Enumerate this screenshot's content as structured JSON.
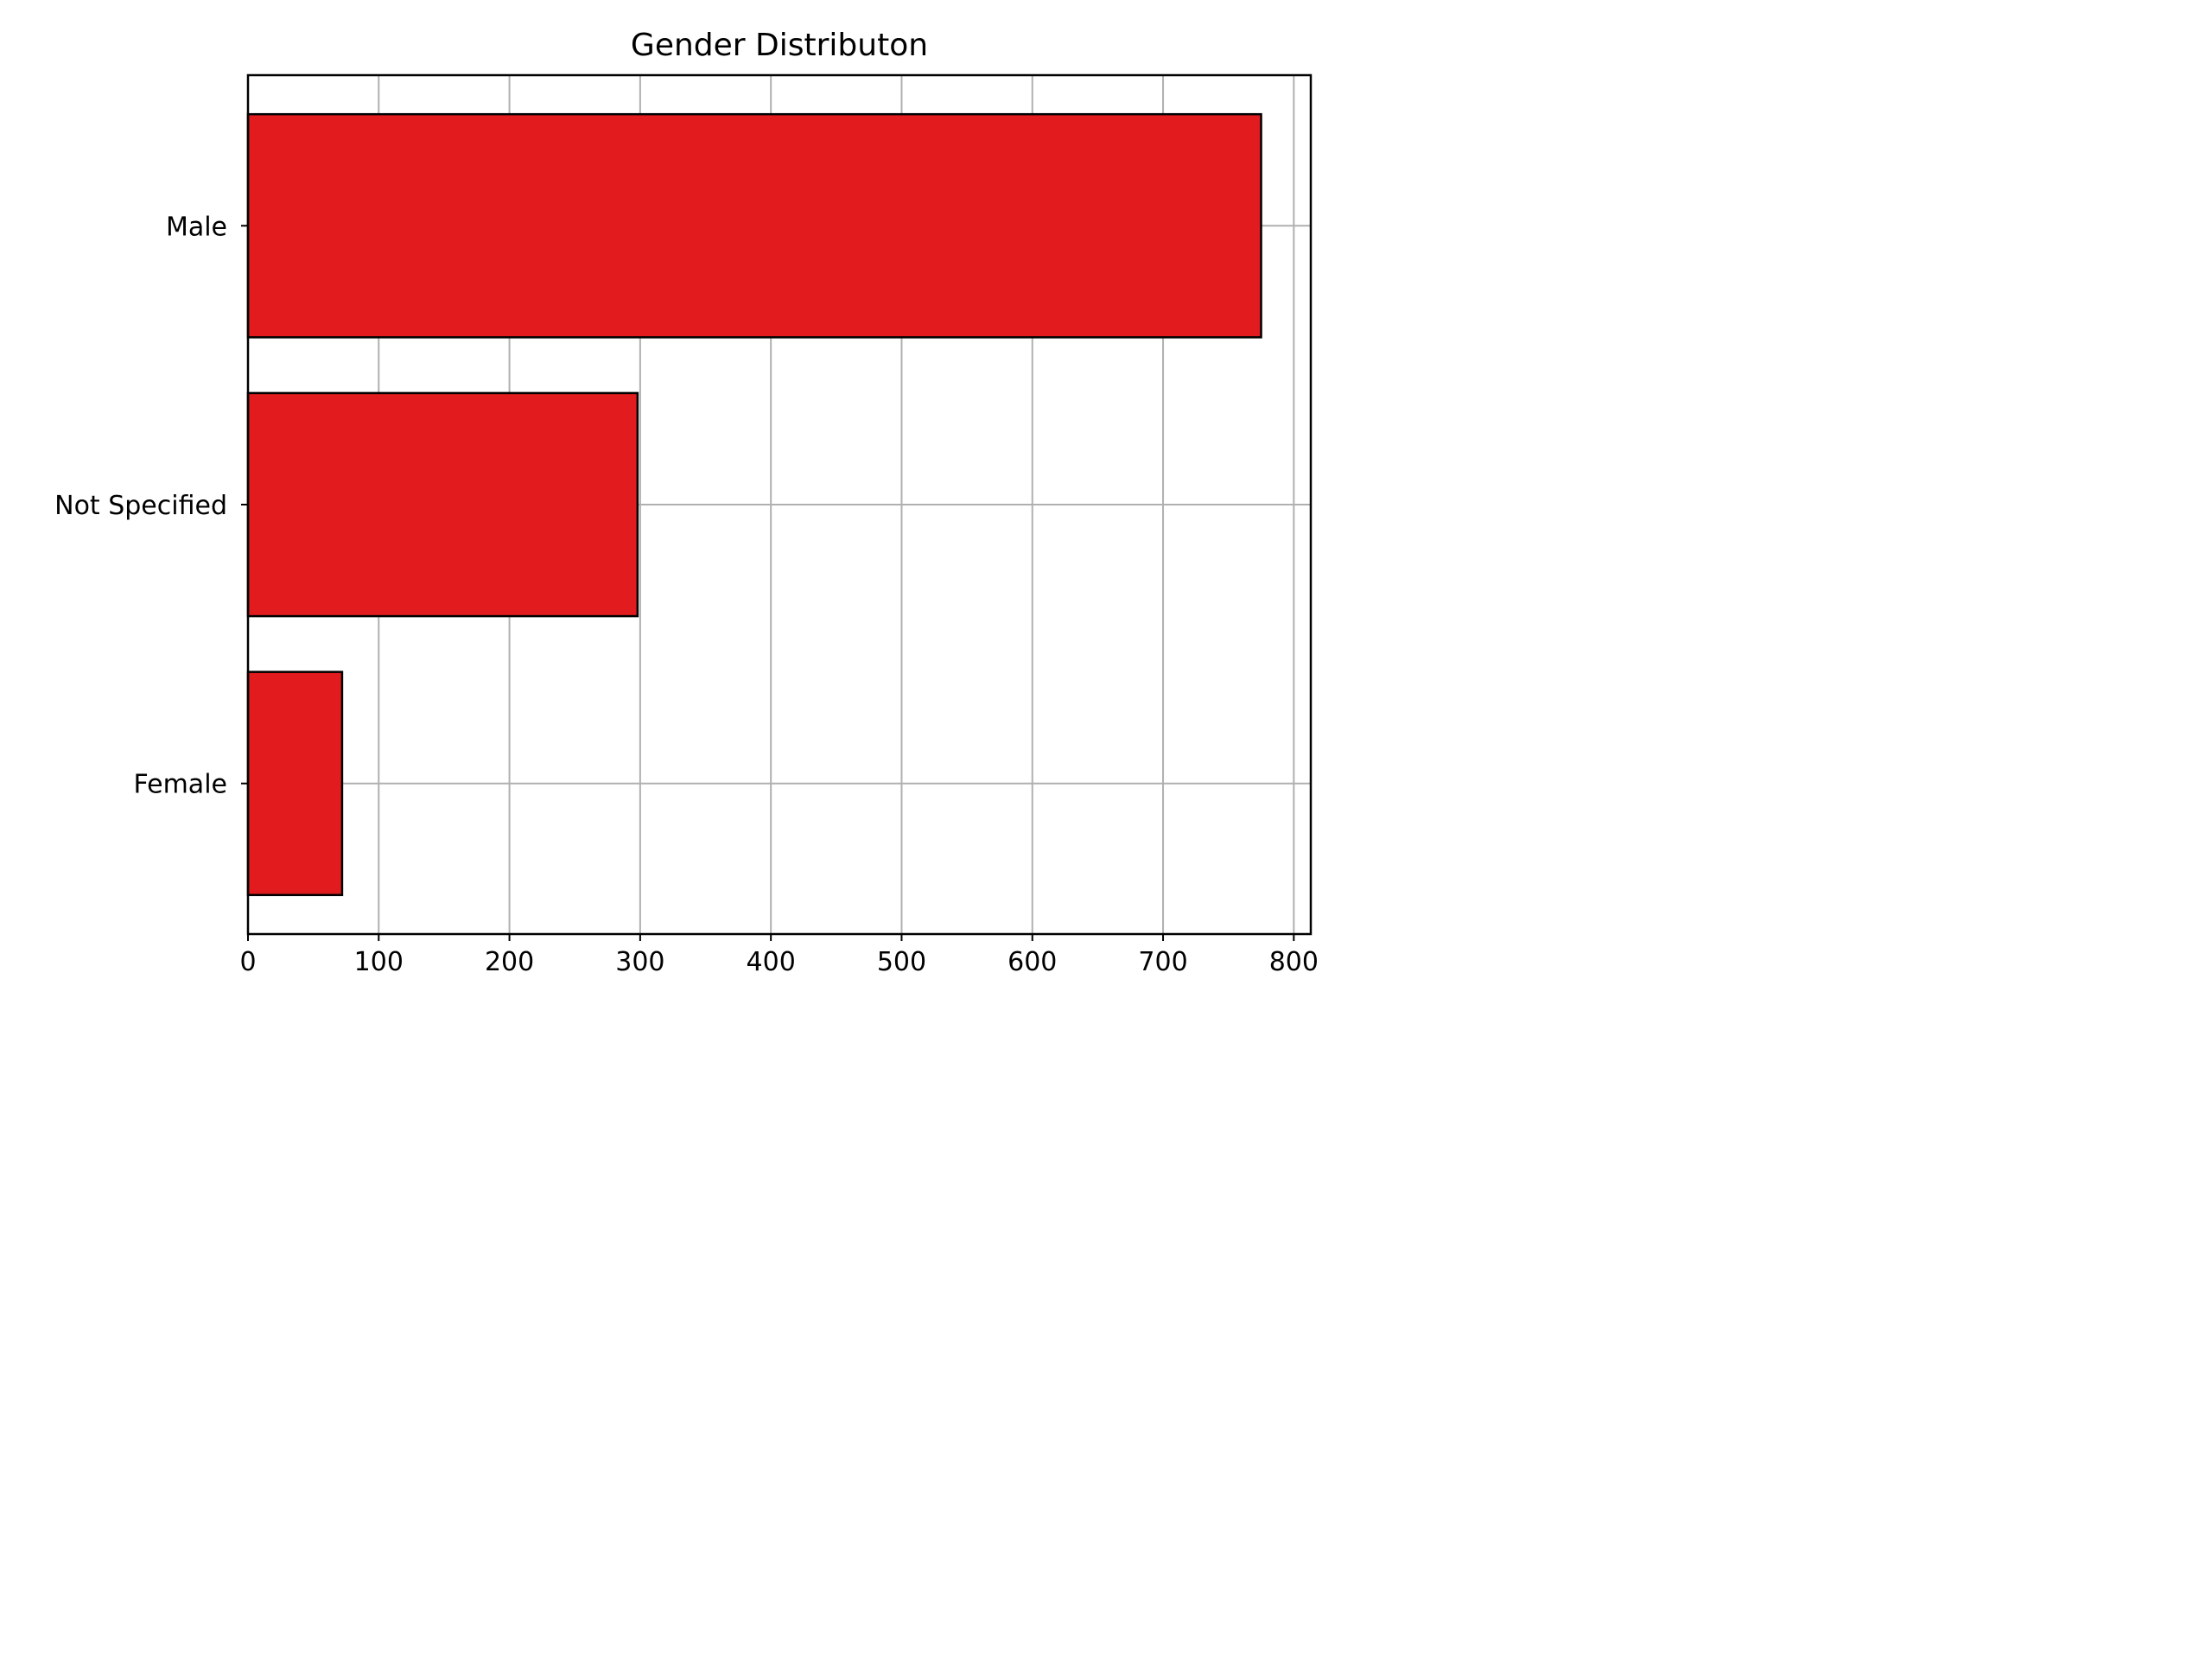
{
  "chart_data": {
    "type": "bar",
    "orientation": "horizontal",
    "title": "Gender Distributon",
    "xlabel": "",
    "ylabel": "",
    "categories": [
      "Male",
      "Not Specified",
      "Female"
    ],
    "values": [
      775,
      298,
      72
    ],
    "xlim": [
      0,
      813
    ],
    "xticks": [
      0,
      100,
      200,
      300,
      400,
      500,
      600,
      700,
      800
    ],
    "grid": true,
    "legend": "none",
    "bar_color": "#e21c1e",
    "bar_edge_color": "#000000",
    "grid_color": "#b0b0b0"
  }
}
